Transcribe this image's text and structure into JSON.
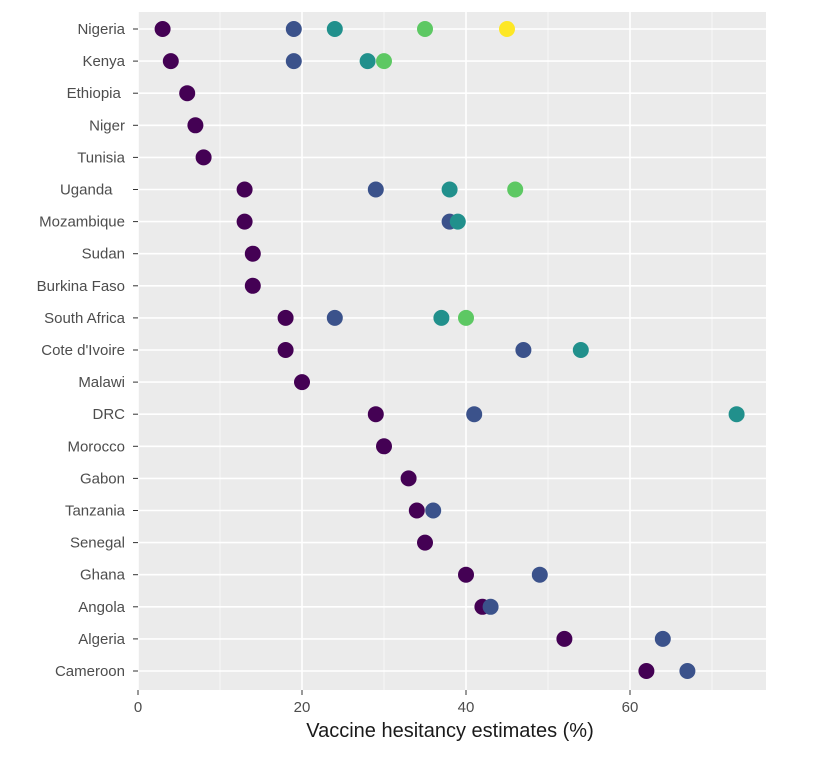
{
  "chart_data": {
    "type": "scatter",
    "title": "",
    "xlabel": "Vaccine hesitancy estimates (%)",
    "ylabel": "",
    "xlim": [
      0,
      76
    ],
    "x_ticks": [
      0,
      20,
      40,
      60
    ],
    "grid": true,
    "background": "#ebebeb",
    "gridline_color": "#ffffff",
    "categories": [
      "Nigeria",
      "Kenya",
      "Ethiopia",
      "Niger",
      "Tunisia",
      "Uganda",
      "Mozambique",
      "Sudan",
      "Burkina Faso",
      "South Africa",
      "Cote d'Ivoire",
      "Malawi",
      "DRC",
      "Morocco",
      "Gabon",
      "Tanzania",
      "Senegal",
      "Ghana",
      "Angola",
      "Algeria",
      "Cameroon"
    ],
    "category_labels": [
      "Nigeria",
      "Kenya",
      "Ethiopia ",
      "Niger",
      "Tunisia",
      "Uganda   ",
      "Mozambique",
      "Sudan",
      "Burkina Faso",
      "South Africa",
      "Cote d'Ivoire",
      "Malawi",
      "DRC",
      "Morocco",
      "Gabon",
      "Tanzania",
      "Senegal",
      "Ghana",
      "Angola",
      "Algeria",
      "Cameroon"
    ],
    "series": [
      {
        "color": "#440154",
        "values": [
          3,
          4,
          6,
          7,
          8,
          13,
          13,
          14,
          14,
          18,
          18,
          20,
          29,
          30,
          33,
          34,
          35,
          40,
          42,
          52,
          62
        ]
      },
      {
        "color": "#3b528b",
        "values": [
          19,
          19,
          null,
          null,
          null,
          29,
          38,
          null,
          null,
          24,
          47,
          null,
          41,
          null,
          null,
          36,
          null,
          49,
          43,
          64,
          67
        ]
      },
      {
        "color": "#21908c",
        "values": [
          24,
          28,
          null,
          null,
          null,
          38,
          39,
          null,
          null,
          37,
          54,
          null,
          73,
          null,
          null,
          null,
          null,
          null,
          null,
          null,
          null
        ]
      },
      {
        "color": "#5dc863",
        "values": [
          35,
          30,
          null,
          null,
          null,
          46,
          null,
          null,
          null,
          40,
          null,
          null,
          null,
          null,
          null,
          null,
          null,
          null,
          null,
          null,
          null
        ]
      },
      {
        "color": "#fde725",
        "values": [
          45,
          null,
          null,
          null,
          null,
          null,
          null,
          null,
          null,
          null,
          null,
          null,
          null,
          null,
          null,
          null,
          null,
          null,
          null,
          null,
          null
        ]
      }
    ]
  }
}
